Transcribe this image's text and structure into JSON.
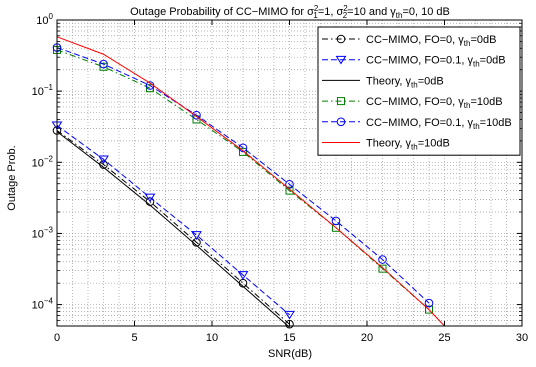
{
  "chart_data": {
    "type": "line",
    "title": {
      "prefix": "Outage Probability of CC−MIMO for ",
      "sigma": "σ",
      "sub1": "1",
      "sup1": "2",
      "eq1": "=1, ",
      "sub2": "2",
      "sup2": "2",
      "eq2": "=10 and ",
      "gamma": "γ",
      "sub3": "th",
      "suffix": "=0, 10 dB"
    },
    "xlabel": "SNR(dB)",
    "ylabel": "Outage Prob.",
    "xlim": [
      0,
      30
    ],
    "ylim": [
      5e-05,
      1
    ],
    "y_scale": "log",
    "grid": "on (dotted, major and minor)",
    "legend_position": "top-right",
    "x_ticks": [
      "0",
      "5",
      "10",
      "15",
      "20",
      "25",
      "30"
    ],
    "y_ticks": [
      {
        "base": "10",
        "exp": "0",
        "value": 1
      },
      {
        "base": "10",
        "exp": "−1",
        "value": 0.1
      },
      {
        "base": "10",
        "exp": "−2",
        "value": 0.01
      },
      {
        "base": "10",
        "exp": "−3",
        "value": 0.001
      },
      {
        "base": "10",
        "exp": "−4",
        "value": 0.0001
      }
    ],
    "series": [
      {
        "name": "CC−MIMO, FO=0, γth=0dB",
        "legend": {
          "main": "CC−MIMO, FO=0, γ",
          "sub": "th",
          "tail": "=0dB"
        },
        "color": "#000000",
        "dash": "dashdot",
        "marker": "circle",
        "x": [
          0,
          3,
          6,
          9,
          12,
          15
        ],
        "y": [
          0.028,
          0.0093,
          0.0028,
          0.00075,
          0.0002,
          5.3e-05
        ]
      },
      {
        "name": "CC−MIMO, FO=0.1, γth=0dB",
        "legend": {
          "main": "CC−MIMO, FO=0.1, γ",
          "sub": "th",
          "tail": "=0dB"
        },
        "color": "#0000ff",
        "dash": "dashed",
        "marker": "triangle-down",
        "x": [
          0,
          3,
          6,
          9,
          12,
          15
        ],
        "y": [
          0.033,
          0.011,
          0.0032,
          0.00095,
          0.00026,
          7.2e-05
        ]
      },
      {
        "name": "Theory, γth=0dB",
        "legend": {
          "main": "Theory, γ",
          "sub": "th",
          "tail": "=0dB"
        },
        "color": "#000000",
        "dash": "solid",
        "marker": "none",
        "x": [
          0,
          3,
          6,
          9,
          12,
          15
        ],
        "y": [
          0.027,
          0.0085,
          0.0025,
          0.00068,
          0.00018,
          4.8e-05
        ]
      },
      {
        "name": "CC−MIMO, FO=0, γth=10dB",
        "legend": {
          "main": "CC−MIMO, FO=0, γ",
          "sub": "th",
          "tail": "=10dB"
        },
        "color": "#008000",
        "dash": "dashdot",
        "marker": "square",
        "x": [
          0,
          3,
          6,
          9,
          12,
          15,
          18,
          21,
          24
        ],
        "y": [
          0.38,
          0.22,
          0.11,
          0.04,
          0.014,
          0.004,
          0.0012,
          0.00032,
          8.5e-05
        ]
      },
      {
        "name": "CC−MIMO, FO=0.1, γth=10dB",
        "legend": {
          "main": "CC−MIMO, FO=0.1, γ",
          "sub": "th",
          "tail": "=10dB"
        },
        "color": "#0000ff",
        "dash": "dashed",
        "marker": "circle",
        "x": [
          0,
          3,
          6,
          9,
          12,
          15,
          18,
          21,
          24
        ],
        "y": [
          0.41,
          0.24,
          0.12,
          0.046,
          0.016,
          0.0049,
          0.0015,
          0.00043,
          0.000105
        ]
      },
      {
        "name": "Theory, γth=10dB",
        "legend": {
          "main": "Theory, γ",
          "sub": "th",
          "tail": "=10dB"
        },
        "color": "#ff0000",
        "dash": "solid",
        "marker": "none",
        "x": [
          0,
          3,
          6,
          9,
          12,
          15,
          18,
          21,
          24,
          25
        ],
        "y": [
          0.58,
          0.33,
          0.13,
          0.044,
          0.0145,
          0.0042,
          0.0012,
          0.00033,
          8.5e-05,
          5e-05
        ]
      }
    ]
  }
}
